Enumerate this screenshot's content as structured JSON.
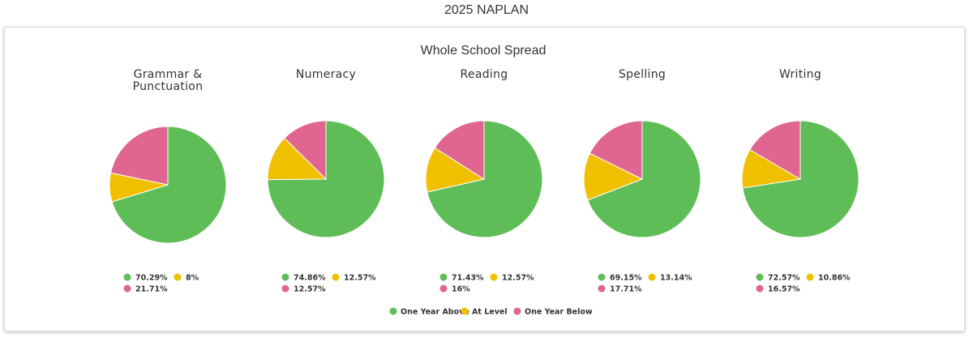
{
  "page": {
    "title": "2025 NAPLAN"
  },
  "chart_data": {
    "type": "pie",
    "title": "Whole School Spread",
    "series_names": [
      "One Year Above",
      "At Level",
      "One Year Below"
    ],
    "colors": [
      "#5ebd56",
      "#f0c000",
      "#e06590"
    ],
    "charts": [
      {
        "title_lines": [
          "Grammar &",
          "Punctuation"
        ],
        "values": [
          70.29,
          8,
          21.71
        ],
        "labels": [
          "70.29%",
          "8%",
          "21.71%"
        ]
      },
      {
        "title_lines": [
          "Numeracy"
        ],
        "values": [
          74.86,
          12.57,
          12.57
        ],
        "labels": [
          "74.86%",
          "12.57%",
          "12.57%"
        ]
      },
      {
        "title_lines": [
          "Reading"
        ],
        "values": [
          71.43,
          12.57,
          16
        ],
        "labels": [
          "71.43%",
          "12.57%",
          "16%"
        ]
      },
      {
        "title_lines": [
          "Spelling"
        ],
        "values": [
          69.15,
          13.14,
          17.71
        ],
        "labels": [
          "69.15%",
          "13.14%",
          "17.71%"
        ]
      },
      {
        "title_lines": [
          "Writing"
        ],
        "values": [
          72.57,
          10.86,
          16.57
        ],
        "labels": [
          "72.57%",
          "10.86%",
          "16.57%"
        ]
      }
    ],
    "legend_position": "bottom"
  }
}
